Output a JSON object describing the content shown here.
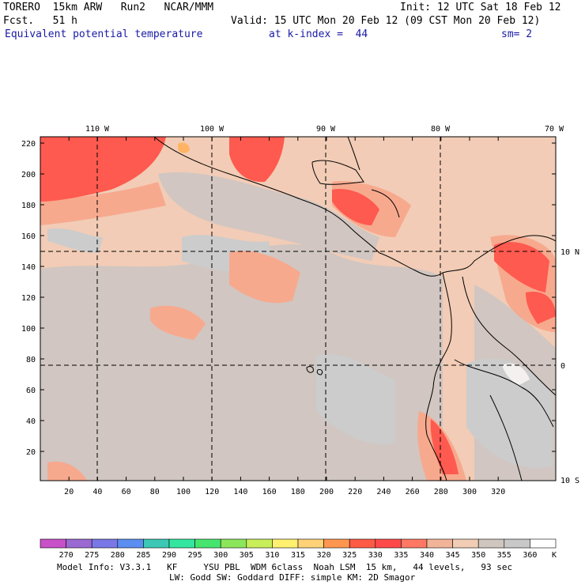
{
  "header": {
    "model": "TORERO  15km ARW   Run2   NCAR/MMM",
    "init": "Init: 12 UTC Sat 18 Feb 12",
    "fcst": "Fcst.   51 h",
    "valid": "Valid: 15 UTC Mon 20 Feb 12 (09 CST Mon 20 Feb 12)",
    "field": "Equivalent potential temperature",
    "level": "at k-index =  44",
    "smooth": "sm= 2"
  },
  "map": {
    "lon_labels": [
      "110 W",
      "100 W",
      "90 W",
      "80 W",
      "70 W"
    ],
    "lat_labels": [
      "10 N",
      "0",
      "10 S"
    ],
    "x_ticks": [
      "20",
      "40",
      "60",
      "80",
      "100",
      "120",
      "140",
      "160",
      "180",
      "200",
      "220",
      "240",
      "260",
      "280",
      "300",
      "320"
    ],
    "y_ticks": [
      "220",
      "200",
      "180",
      "160",
      "140",
      "120",
      "100",
      "80",
      "60",
      "40",
      "20"
    ]
  },
  "colorbar": {
    "labels": [
      "270",
      "275",
      "280",
      "285",
      "290",
      "295",
      "300",
      "305",
      "310",
      "315",
      "320",
      "325",
      "330",
      "335",
      "340",
      "345",
      "350",
      "355",
      "360"
    ],
    "unit": "K",
    "colors": [
      "#c850c8",
      "#9a6ad2",
      "#7a78e6",
      "#5a8ef0",
      "#3cc8b4",
      "#34e6a0",
      "#46e66e",
      "#8ce65a",
      "#c8ee5a",
      "#fff070",
      "#ffd278",
      "#ff9650",
      "#ff5a46",
      "#ff4a4a",
      "#ff7864",
      "#f2b498",
      "#f0cdb4",
      "#d0c6c0",
      "#c8c8c8",
      "#ffffff"
    ]
  },
  "footer": {
    "line1": "Model Info: V3.3.1   KF     YSU PBL  WDM 6class  Noah LSM  15 km,   44 levels,   93 sec",
    "line2": "LW: Godd SW: Goddard DIFF: simple KM: 2D Smagor"
  }
}
